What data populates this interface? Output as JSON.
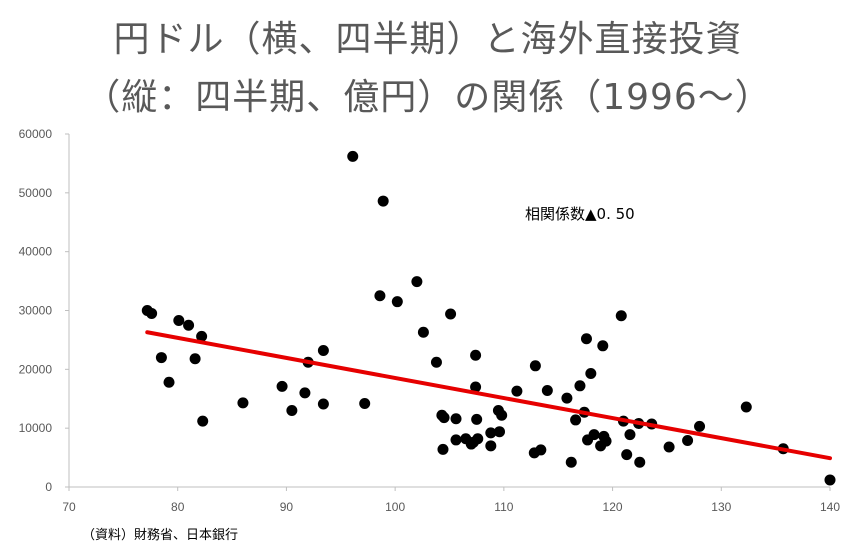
{
  "chart_data": {
    "type": "scatter",
    "title_line1": "円ドル（横、四半期）と海外直接投資",
    "title_line2": "（縦：四半期、億円）の関係（1996～）",
    "xlabel": "",
    "ylabel": "",
    "xlim": [
      70,
      140
    ],
    "ylim": [
      0,
      60000
    ],
    "x_ticks": [
      70,
      80,
      90,
      100,
      110,
      120,
      130,
      140
    ],
    "y_ticks": [
      0,
      10000,
      20000,
      30000,
      40000,
      50000,
      60000
    ],
    "grid": false,
    "points": [
      [
        77.2,
        30000
      ],
      [
        77.6,
        29500
      ],
      [
        78.5,
        22000
      ],
      [
        79.2,
        17800
      ],
      [
        80.1,
        28300
      ],
      [
        81.0,
        27500
      ],
      [
        81.6,
        21800
      ],
      [
        82.2,
        25600
      ],
      [
        82.3,
        11200
      ],
      [
        86.0,
        14300
      ],
      [
        89.6,
        17100
      ],
      [
        90.5,
        13000
      ],
      [
        91.7,
        16000
      ],
      [
        92.0,
        21200
      ],
      [
        93.4,
        23200
      ],
      [
        93.4,
        14100
      ],
      [
        96.1,
        56200
      ],
      [
        97.2,
        14200
      ],
      [
        98.6,
        32500
      ],
      [
        98.9,
        48600
      ],
      [
        100.2,
        31500
      ],
      [
        102.0,
        34900
      ],
      [
        102.6,
        26300
      ],
      [
        103.8,
        21200
      ],
      [
        104.3,
        12200
      ],
      [
        104.5,
        11800
      ],
      [
        104.4,
        6400
      ],
      [
        105.1,
        29400
      ],
      [
        105.6,
        11600
      ],
      [
        105.6,
        8000
      ],
      [
        106.5,
        8200
      ],
      [
        107.0,
        7300
      ],
      [
        107.2,
        7600
      ],
      [
        107.4,
        22400
      ],
      [
        107.4,
        17000
      ],
      [
        107.5,
        11500
      ],
      [
        107.6,
        8200
      ],
      [
        108.8,
        9200
      ],
      [
        108.8,
        7000
      ],
      [
        109.5,
        13000
      ],
      [
        109.6,
        9400
      ],
      [
        109.8,
        12200
      ],
      [
        111.2,
        16300
      ],
      [
        112.8,
        5800
      ],
      [
        112.9,
        20600
      ],
      [
        113.4,
        6300
      ],
      [
        114.0,
        16400
      ],
      [
        115.8,
        15100
      ],
      [
        116.2,
        4200
      ],
      [
        116.6,
        11400
      ],
      [
        117.0,
        17200
      ],
      [
        117.4,
        12700
      ],
      [
        117.6,
        25200
      ],
      [
        117.7,
        8000
      ],
      [
        118.0,
        19300
      ],
      [
        118.3,
        8900
      ],
      [
        118.9,
        7000
      ],
      [
        119.1,
        24000
      ],
      [
        119.2,
        8600
      ],
      [
        119.4,
        7800
      ],
      [
        120.8,
        29100
      ],
      [
        121.0,
        11200
      ],
      [
        121.3,
        5500
      ],
      [
        121.6,
        8900
      ],
      [
        122.4,
        10800
      ],
      [
        122.5,
        4200
      ],
      [
        123.6,
        10700
      ],
      [
        125.2,
        6800
      ],
      [
        126.9,
        7900
      ],
      [
        128.0,
        10300
      ],
      [
        132.3,
        13600
      ],
      [
        135.7,
        6500
      ],
      [
        140.0,
        1200
      ]
    ],
    "trendline": {
      "x": [
        77.2,
        140.0
      ],
      "y": [
        26300,
        4900
      ],
      "color": "#e60000"
    },
    "marker_color": "#000000",
    "annotation": "相関係数▲0. 50",
    "source_note": "（資料）財務省、日本銀行"
  }
}
